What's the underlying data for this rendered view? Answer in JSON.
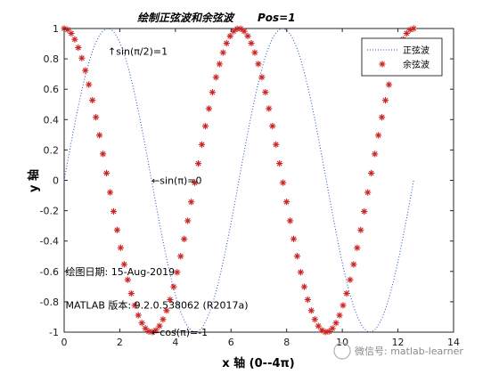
{
  "chart_data": {
    "type": "line",
    "title": "绘制正弦波和余弦波",
    "title_suffix": "Pos=1",
    "xlabel": "x 轴  (0--4π)",
    "ylabel": "y 轴",
    "xlim": [
      0,
      14
    ],
    "ylim": [
      -1,
      1
    ],
    "xticks": [
      0,
      2,
      4,
      6,
      8,
      10,
      12,
      14
    ],
    "yticks": [
      -1,
      -0.8,
      -0.6,
      -0.4,
      -0.2,
      0,
      0.2,
      0.4,
      0.6,
      0.8,
      1
    ],
    "x_range": [
      0,
      12.566
    ],
    "num_points": 100,
    "series": [
      {
        "name": "正弦波",
        "function": "sin",
        "style": "dotted",
        "color": "#1f4fbf"
      },
      {
        "name": "余弦波",
        "function": "cos",
        "style": "asterisk",
        "color": "#cc2222"
      }
    ],
    "annotations": [
      {
        "text": "↑sin(π/2)=1",
        "x": 1.571,
        "y": 0.85
      },
      {
        "text": "←sin(π)=0",
        "x": 3.142,
        "y": 0
      },
      {
        "text": "←cos(π)=-1",
        "x": 3.142,
        "y": -1
      },
      {
        "text": "绘图日期:   15-Aug-2019",
        "x": 0.05,
        "y": -0.6
      },
      {
        "text": "MATLAB 版本:   9.2.0.538062 (R2017a)",
        "x": 0.05,
        "y": -0.82
      }
    ],
    "legend_position": "top-right",
    "grid": false
  },
  "watermark": {
    "text": "微信号: matlab-learner"
  }
}
